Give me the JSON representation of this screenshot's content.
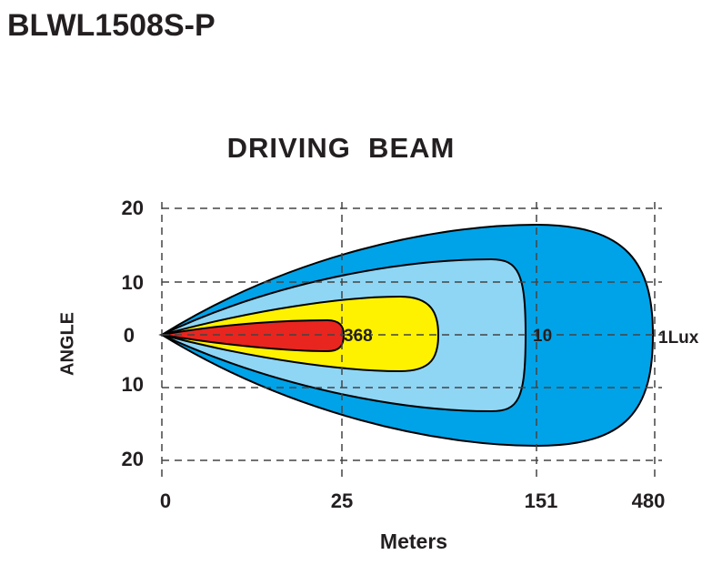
{
  "header": {
    "title": "BLWL1508S-P"
  },
  "diagram": {
    "title": "DRIVING  BEAM",
    "y_axis_label": "ANGLE",
    "x_axis_label": "Meters",
    "y_ticks": [
      "20",
      "10",
      "0",
      "10",
      "20"
    ],
    "x_ticks": [
      "0",
      "25",
      "151",
      "480"
    ],
    "contours": [
      {
        "label": "368"
      },
      {
        "label": "10"
      },
      {
        "label": "1Lux"
      }
    ]
  }
}
